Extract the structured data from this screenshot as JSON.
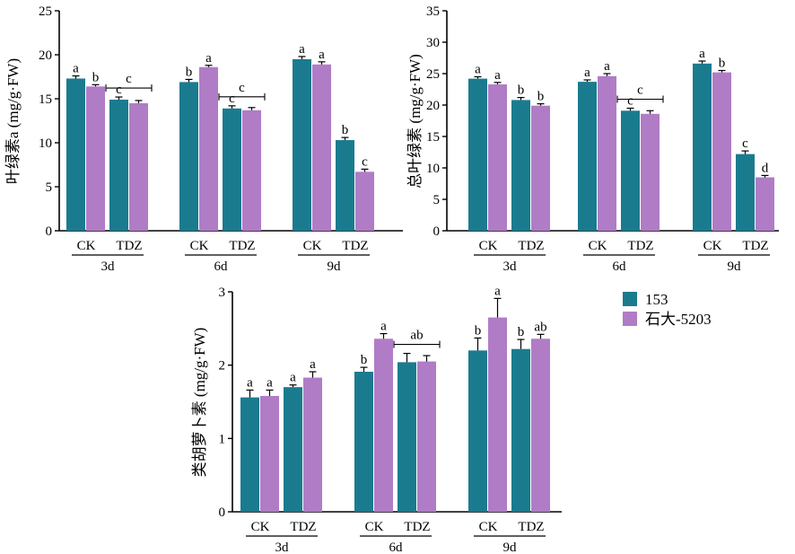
{
  "colors": {
    "series_153": "#1a7b8f",
    "series_shida": "#b07cc6",
    "axis": "#000000"
  },
  "legend": {
    "items": [
      {
        "name": "153",
        "color": "#1a7b8f"
      },
      {
        "name": "石大-5203",
        "color": "#b07cc6"
      }
    ]
  },
  "chart_data": [
    {
      "type": "bar",
      "ylabel": "叶绿素a (mg/g·FW)",
      "ylim": [
        0,
        25
      ],
      "yticks": [
        "0",
        "5",
        "10",
        "15",
        "20",
        "25"
      ],
      "treatment_labels": [
        "CK",
        "TDZ"
      ],
      "groups": [
        "3d",
        "6d",
        "9d"
      ],
      "series": [
        {
          "name": "153",
          "values": [
            17.3,
            14.9,
            16.9,
            13.9,
            19.5,
            10.3
          ],
          "errors": [
            0.3,
            0.3,
            0.3,
            0.3,
            0.3,
            0.3
          ],
          "letters": [
            "a",
            "c",
            "b",
            "c",
            "a",
            "b"
          ]
        },
        {
          "name": "石大-5203",
          "values": [
            16.4,
            14.5,
            18.6,
            13.7,
            18.9,
            6.7
          ],
          "errors": [
            0.2,
            0.3,
            0.2,
            0.3,
            0.3,
            0.3
          ],
          "letters": [
            "b",
            "",
            "a",
            "",
            "a",
            "c"
          ]
        }
      ],
      "brackets": [
        {
          "group": 0,
          "treatment": 1,
          "letter": "c"
        },
        {
          "group": 1,
          "treatment": 1,
          "letter": "c"
        }
      ]
    },
    {
      "type": "bar",
      "ylabel": "总叶绿素 (mg/g·FW)",
      "ylim": [
        0,
        35
      ],
      "yticks": [
        "0",
        "5",
        "10",
        "15",
        "20",
        "25",
        "30",
        "35"
      ],
      "treatment_labels": [
        "CK",
        "TDZ"
      ],
      "groups": [
        "3d",
        "6d",
        "9d"
      ],
      "series": [
        {
          "name": "153",
          "values": [
            24.2,
            20.8,
            23.7,
            19.1,
            26.6,
            12.2
          ],
          "errors": [
            0.3,
            0.4,
            0.3,
            0.4,
            0.4,
            0.5
          ],
          "letters": [
            "a",
            "b",
            "a",
            "c",
            "a",
            "c"
          ]
        },
        {
          "name": "石大-5203",
          "values": [
            23.3,
            19.9,
            24.6,
            18.6,
            25.2,
            8.5
          ],
          "errors": [
            0.3,
            0.3,
            0.4,
            0.5,
            0.3,
            0.3
          ],
          "letters": [
            "a",
            "b",
            "a",
            "",
            "b",
            "d"
          ]
        }
      ],
      "brackets": [
        {
          "group": 1,
          "treatment": 1,
          "letter": "c"
        }
      ]
    },
    {
      "type": "bar",
      "ylabel": "类胡萝卜素 (mg/g·FW)",
      "ylim": [
        0,
        3
      ],
      "yticks": [
        "0",
        "1",
        "2",
        "3"
      ],
      "treatment_labels": [
        "CK",
        "TDZ"
      ],
      "groups": [
        "3d",
        "6d",
        "9d"
      ],
      "series": [
        {
          "name": "153",
          "values": [
            1.56,
            1.7,
            1.91,
            2.04,
            2.2,
            2.22
          ],
          "errors": [
            0.1,
            0.03,
            0.06,
            0.12,
            0.17,
            0.13
          ],
          "letters": [
            "a",
            "a",
            "b",
            "",
            "b",
            "b"
          ]
        },
        {
          "name": "石大-5203",
          "values": [
            1.58,
            1.83,
            2.36,
            2.05,
            2.65,
            2.36
          ],
          "errors": [
            0.08,
            0.08,
            0.07,
            0.08,
            0.26,
            0.06
          ],
          "letters": [
            "a",
            "a",
            "a",
            "",
            "a",
            "ab"
          ]
        }
      ],
      "brackets": [
        {
          "group": 1,
          "treatment": 1,
          "letter": "ab"
        }
      ]
    }
  ]
}
